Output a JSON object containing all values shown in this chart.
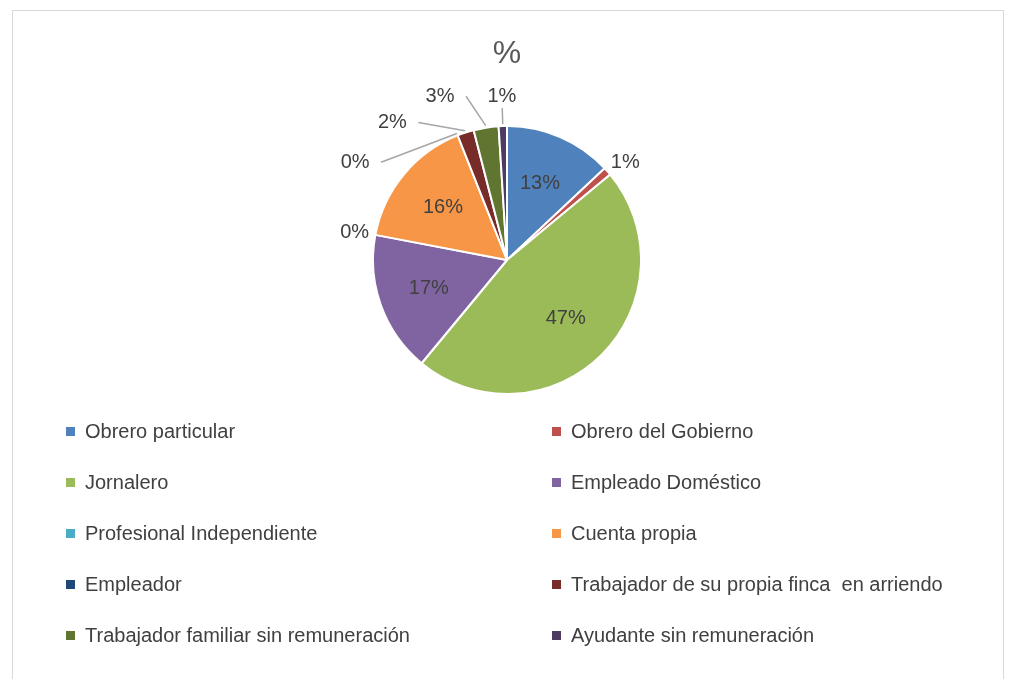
{
  "chart_data": {
    "type": "pie",
    "title": "%",
    "legend": "bottom",
    "categories": [
      "Obrero particular",
      "Obrero del Gobierno",
      "Jornalero",
      "Empleado Doméstico",
      "Profesional Independiente",
      "Cuenta propia",
      "Empleador",
      "Trabajador de su propia finca  en arriendo",
      "Trabajador familiar sin remuneración",
      "Ayudante sin remuneración"
    ],
    "values": [
      13,
      1,
      47,
      17,
      0,
      16,
      0,
      2,
      3,
      1
    ],
    "value_labels": [
      "13%",
      "1%",
      "47%",
      "17%",
      "0%",
      "16%",
      "0%",
      "2%",
      "3%",
      "1%"
    ],
    "colors": [
      "#4f81bd",
      "#c0504d",
      "#9bbb59",
      "#8064a2",
      "#4bacc6",
      "#f79646",
      "#1f497d",
      "#772c2a",
      "#5f7530",
      "#4d3b62"
    ]
  }
}
